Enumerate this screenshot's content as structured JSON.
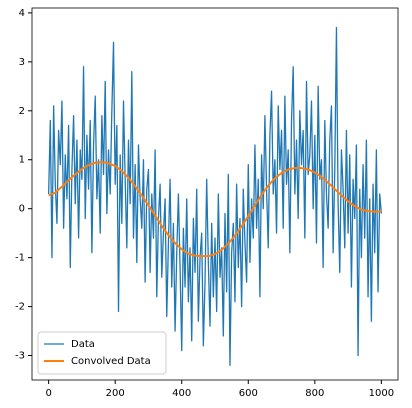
{
  "chart_data": {
    "type": "line",
    "xlim": [
      -50,
      1050
    ],
    "ylim": [
      -3.5,
      4.1
    ],
    "xticks": [
      0,
      200,
      400,
      600,
      800,
      1000
    ],
    "yticks": [
      -3,
      -2,
      -1,
      0,
      1,
      2,
      3,
      4
    ],
    "legend": "lower left",
    "series": [
      {
        "name": "Data",
        "color": "#1f77b4",
        "width": 1.3,
        "x": [
          0,
          5,
          10,
          15,
          20,
          25,
          30,
          35,
          40,
          45,
          50,
          55,
          60,
          65,
          70,
          75,
          80,
          85,
          90,
          95,
          100,
          105,
          110,
          115,
          120,
          125,
          130,
          135,
          140,
          145,
          150,
          155,
          160,
          165,
          170,
          175,
          180,
          185,
          190,
          195,
          200,
          205,
          210,
          215,
          220,
          225,
          230,
          235,
          240,
          245,
          250,
          255,
          260,
          265,
          270,
          275,
          280,
          285,
          290,
          295,
          300,
          305,
          310,
          315,
          320,
          325,
          330,
          335,
          340,
          345,
          350,
          355,
          360,
          365,
          370,
          375,
          380,
          385,
          390,
          395,
          400,
          405,
          410,
          415,
          420,
          425,
          430,
          435,
          440,
          445,
          450,
          455,
          460,
          465,
          470,
          475,
          480,
          485,
          490,
          495,
          500,
          505,
          510,
          515,
          520,
          525,
          530,
          535,
          540,
          545,
          550,
          555,
          560,
          565,
          570,
          575,
          580,
          585,
          590,
          595,
          600,
          605,
          610,
          615,
          620,
          625,
          630,
          635,
          640,
          645,
          650,
          655,
          660,
          665,
          670,
          675,
          680,
          685,
          690,
          695,
          700,
          705,
          710,
          715,
          720,
          725,
          730,
          735,
          740,
          745,
          750,
          755,
          760,
          765,
          770,
          775,
          780,
          785,
          790,
          795,
          800,
          805,
          810,
          815,
          820,
          825,
          830,
          835,
          840,
          845,
          850,
          855,
          860,
          865,
          870,
          875,
          880,
          885,
          890,
          895,
          900,
          905,
          910,
          915,
          920,
          925,
          930,
          935,
          940,
          945,
          950,
          955,
          960,
          965,
          970,
          975,
          980,
          985,
          990,
          995,
          1000
        ],
        "values": [
          0.3,
          1.8,
          -1.0,
          2.1,
          0.5,
          -0.3,
          1.6,
          0.9,
          2.2,
          -0.4,
          1.1,
          0.2,
          1.7,
          -1.2,
          0.8,
          1.9,
          0.1,
          1.4,
          -0.6,
          1.2,
          0.6,
          2.9,
          -0.2,
          1.5,
          0.4,
          1.8,
          -0.9,
          1.3,
          2.3,
          0.2,
          1.0,
          -0.5,
          1.9,
          0.7,
          2.6,
          -0.1,
          1.2,
          0.3,
          2.0,
          3.4,
          0.5,
          1.7,
          -2.1,
          1.1,
          -0.3,
          2.2,
          0.6,
          -0.8,
          1.4,
          0.1,
          2.8,
          -0.6,
          0.9,
          -1.1,
          1.3,
          0.2,
          -0.4,
          1.0,
          -1.5,
          0.4,
          0.8,
          -1.3,
          0.3,
          -0.6,
          1.2,
          -1.8,
          -0.2,
          0.5,
          -1.4,
          -0.5,
          0.2,
          -2.2,
          -0.7,
          0.6,
          -1.6,
          -0.3,
          -2.5,
          -0.9,
          0.3,
          -1.2,
          -2.9,
          -0.4,
          -1.6,
          0.2,
          -1.9,
          -0.8,
          -2.7,
          -0.2,
          -1.3,
          0.4,
          -2.3,
          -1.0,
          -0.5,
          -2.8,
          -1.5,
          0.6,
          -1.1,
          -2.4,
          -0.3,
          -1.8,
          -0.6,
          -2.1,
          0.3,
          -1.4,
          -0.8,
          -2.6,
          -0.1,
          -1.7,
          0.7,
          -3.2,
          -0.9,
          -0.3,
          -1.9,
          0.5,
          -1.2,
          -0.2,
          -2.0,
          0.4,
          -0.7,
          -1.5,
          0.9,
          -1.1,
          0.2,
          -0.6,
          1.3,
          -0.4,
          0.6,
          -1.8,
          1.1,
          0.0,
          1.9,
          0.4,
          -0.8,
          1.5,
          2.4,
          0.3,
          1.0,
          -0.5,
          2.1,
          0.8,
          1.6,
          -0.4,
          2.3,
          0.5,
          1.2,
          -0.9,
          1.8,
          2.9,
          0.3,
          1.4,
          -0.2,
          2.0,
          0.9,
          1.6,
          -0.6,
          2.6,
          0.7,
          1.1,
          2.2,
          0.0,
          1.5,
          -0.7,
          2.5,
          0.6,
          1.0,
          -1.2,
          1.8,
          0.3,
          -0.4,
          1.4,
          2.1,
          -0.9,
          0.8,
          3.7,
          0.1,
          -1.3,
          1.2,
          0.4,
          -0.8,
          1.6,
          -0.5,
          1.1,
          -1.6,
          0.6,
          -0.2,
          1.3,
          -3.0,
          0.4,
          -1.0,
          0.9,
          -0.6,
          1.4,
          -1.8,
          0.2,
          -2.3,
          0.5,
          -0.9,
          1.2,
          -1.7,
          0.3,
          -0.1
        ]
      },
      {
        "name": "Convolved Data",
        "color": "#ff7f0e",
        "width": 2,
        "x": [
          0,
          20,
          40,
          60,
          80,
          100,
          120,
          140,
          160,
          180,
          200,
          220,
          240,
          260,
          280,
          300,
          320,
          340,
          360,
          380,
          400,
          420,
          440,
          460,
          480,
          500,
          520,
          540,
          560,
          580,
          600,
          620,
          640,
          660,
          680,
          700,
          720,
          740,
          760,
          780,
          800,
          820,
          840,
          860,
          880,
          900,
          920,
          940,
          960,
          980,
          1000
        ],
        "values": [
          0.27,
          0.33,
          0.45,
          0.58,
          0.7,
          0.81,
          0.89,
          0.94,
          0.95,
          0.93,
          0.87,
          0.77,
          0.63,
          0.46,
          0.27,
          0.07,
          -0.14,
          -0.35,
          -0.54,
          -0.7,
          -0.83,
          -0.92,
          -0.96,
          -0.97,
          -0.97,
          -0.93,
          -0.84,
          -0.71,
          -0.55,
          -0.36,
          -0.15,
          0.07,
          0.28,
          0.47,
          0.62,
          0.73,
          0.8,
          0.83,
          0.83,
          0.8,
          0.74,
          0.65,
          0.53,
          0.4,
          0.27,
          0.15,
          0.05,
          -0.02,
          -0.05,
          -0.06,
          -0.06
        ]
      }
    ]
  }
}
